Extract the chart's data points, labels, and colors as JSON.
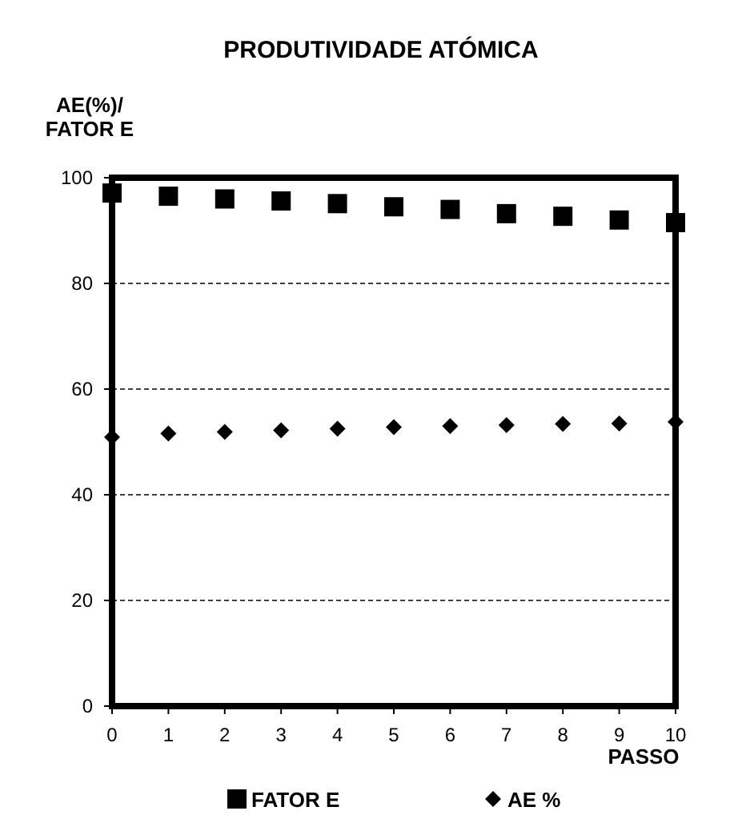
{
  "chart_data": {
    "type": "scatter",
    "title": "PRODUTIVIDADE ATÓMICA",
    "xlabel": "PASSO",
    "ylabel": "AE(%)/\nFATOR E",
    "x": [
      0,
      1,
      2,
      3,
      4,
      5,
      6,
      7,
      8,
      9,
      10
    ],
    "series": [
      {
        "name": "FATOR E",
        "color": "#000000",
        "marker": "square",
        "values": [
          97.1,
          96.5,
          96,
          95.6,
          95.1,
          94.5,
          94,
          93.2,
          92.7,
          92,
          91.5
        ]
      },
      {
        "name": "AE %",
        "color": "#000000",
        "marker": "diamond",
        "values": [
          50.9,
          51.6,
          51.9,
          52.2,
          52.5,
          52.8,
          53,
          53.2,
          53.4,
          53.5,
          53.8
        ]
      }
    ],
    "xlim": [
      0,
      10
    ],
    "xticks": [
      0,
      1,
      2,
      3,
      4,
      5,
      6,
      7,
      8,
      9,
      10
    ],
    "ylim": [
      0,
      100
    ],
    "yticks": [
      0,
      20,
      40,
      60,
      80,
      100
    ],
    "grid": "y",
    "legend": "bottom"
  }
}
